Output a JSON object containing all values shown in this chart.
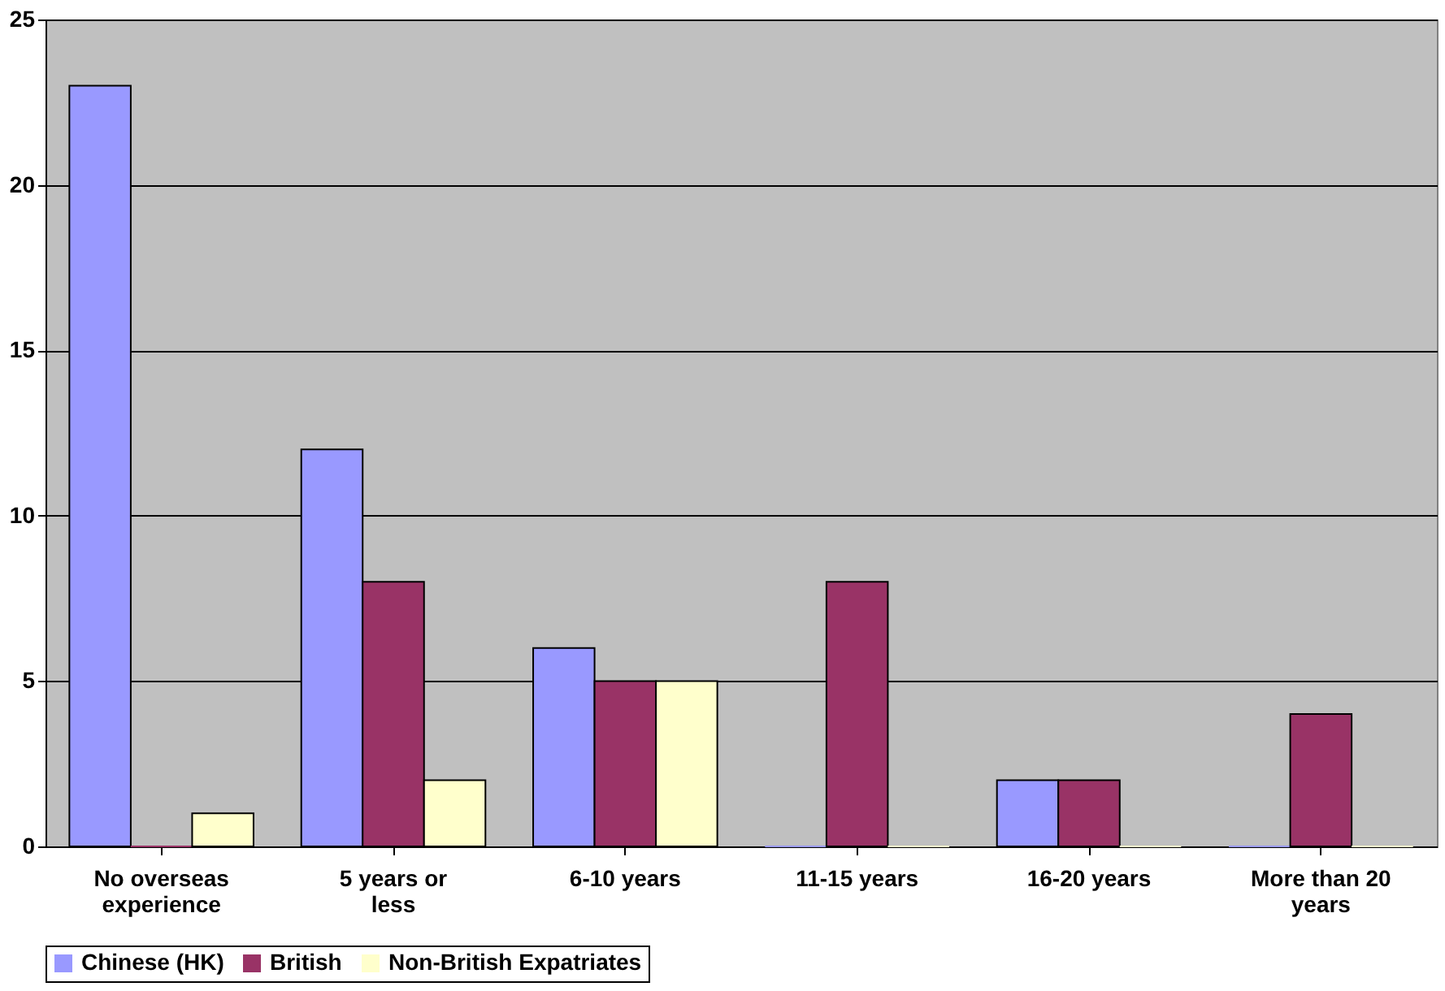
{
  "chart_data": {
    "type": "bar",
    "categories": [
      "No overseas experience",
      "5 years or less",
      "6-10 years",
      "11-15 years",
      "16-20 years",
      "More than 20 years"
    ],
    "series": [
      {
        "name": "Chinese (HK)",
        "color": "#9999ff",
        "values": [
          23,
          12,
          6,
          0,
          2,
          0
        ]
      },
      {
        "name": "British",
        "color": "#993366",
        "values": [
          0,
          8,
          5,
          8,
          2,
          4
        ]
      },
      {
        "name": "Non-British Expatriates",
        "color": "#ffffcc",
        "values": [
          1,
          2,
          5,
          0,
          0,
          0
        ]
      }
    ],
    "ylim": [
      0,
      25
    ],
    "yticks": [
      0,
      5,
      10,
      15,
      20,
      25
    ],
    "grid": "y",
    "legend": "bottom"
  }
}
